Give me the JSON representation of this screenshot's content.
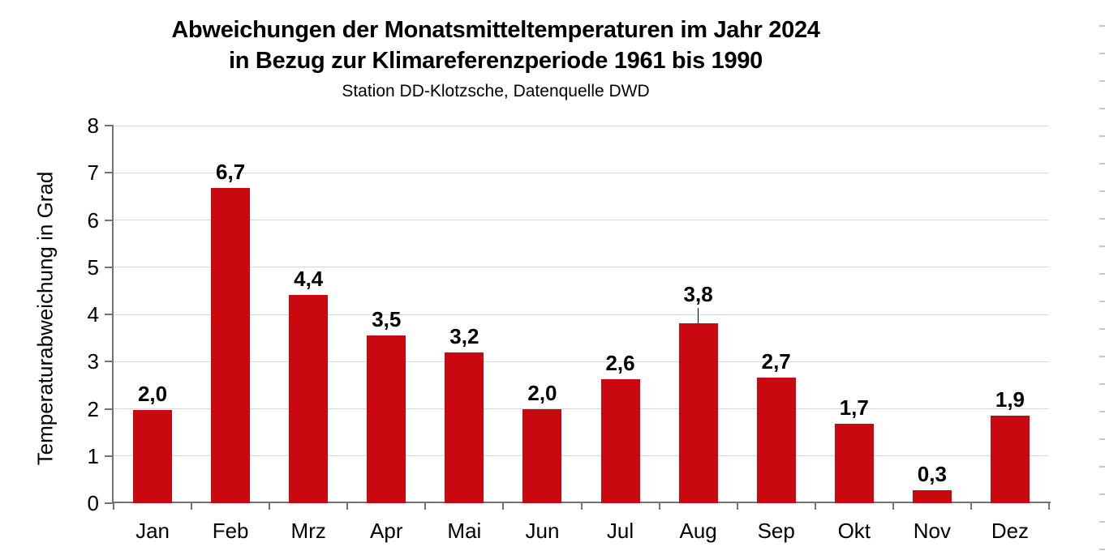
{
  "title": {
    "line1": "Abweichungen der Monatsmitteltemperaturen im Jahr 2024",
    "line2": "in Bezug zur Klimareferenzperiode 1961 bis 1990",
    "subtitle": "Station DD-Klotzsche, Datenquelle DWD"
  },
  "chart_data": {
    "type": "bar",
    "title": "Abweichungen der Monatsmitteltemperaturen im Jahr 2024 in Bezug zur Klimareferenzperiode 1961 bis 1990",
    "subtitle": "Station DD-Klotzsche, Datenquelle DWD",
    "categories": [
      "Jan",
      "Feb",
      "Mrz",
      "Apr",
      "Mai",
      "Jun",
      "Jul",
      "Aug",
      "Sep",
      "Okt",
      "Nov",
      "Dez"
    ],
    "values": [
      2.0,
      6.7,
      4.4,
      3.5,
      3.2,
      2.0,
      2.6,
      3.8,
      2.7,
      1.7,
      0.3,
      1.9
    ],
    "data_labels": [
      "2,0",
      "6,7",
      "4,4",
      "3,5",
      "3,2",
      "2,0",
      "2,6",
      "3,8",
      "2,7",
      "1,7",
      "0,3",
      "1,9"
    ],
    "bar_heights_visual": [
      1.97,
      6.68,
      4.41,
      3.55,
      3.19,
      1.99,
      2.63,
      3.82,
      2.66,
      1.68,
      0.27,
      1.86
    ],
    "labels_with_leader": [
      "Aug"
    ],
    "xlabel": "",
    "ylabel": "Temperaturabweichung in Grad",
    "ylim": [
      0,
      8
    ],
    "yticks": [
      0,
      1,
      2,
      3,
      4,
      5,
      6,
      7,
      8
    ],
    "grid": true,
    "legend": false,
    "bar_color": "#C9090F",
    "gridline_color": "#D9D9D9",
    "axis_color": "#737373",
    "label_color": "#000000"
  },
  "artifacts": {
    "right_edge_marks": {
      "count": 20,
      "color": "#CDC6C2"
    }
  }
}
